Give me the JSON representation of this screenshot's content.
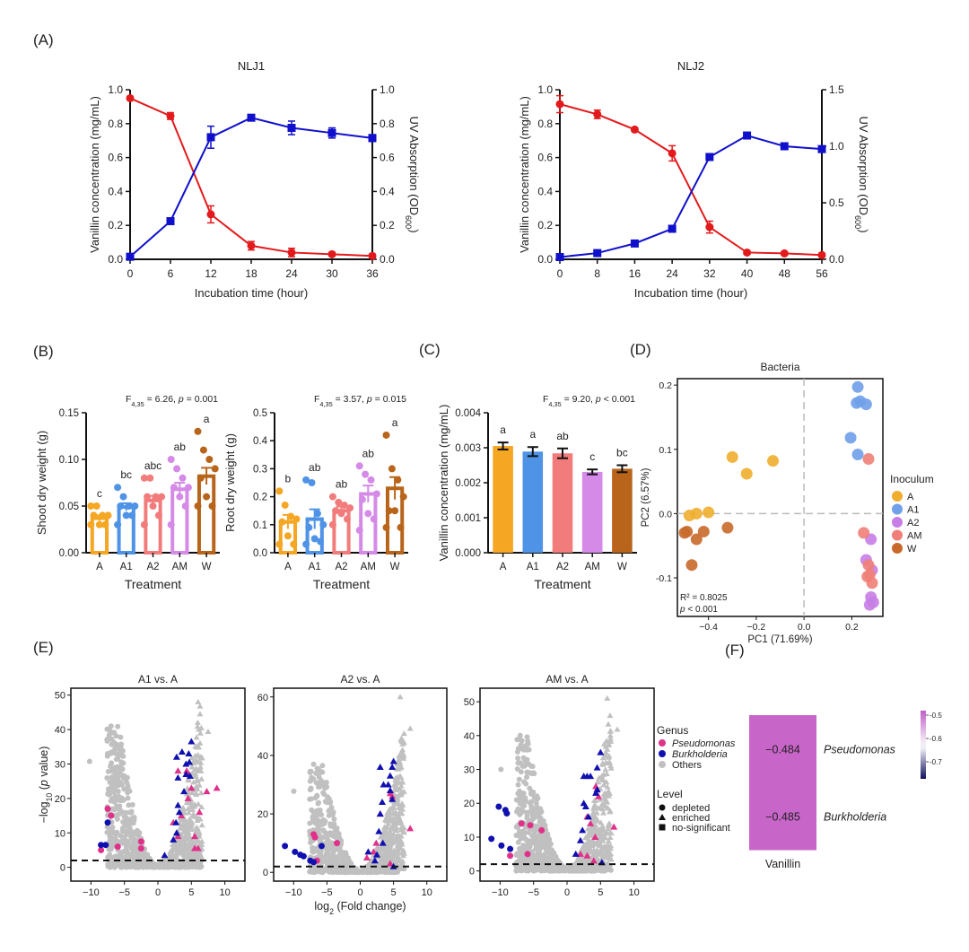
{
  "panel_labels": {
    "A": "(A)",
    "B": "(B)",
    "C": "(C)",
    "D": "(D)",
    "E": "(E)",
    "F": "(F)"
  },
  "colors": {
    "vanillin_line": "#e31a1c",
    "od_line": "#1010cc",
    "A": "#f5a623",
    "A1": "#4f93e6",
    "A2": "#f27c7c",
    "AM": "#d58ae8",
    "W": "#b8651b",
    "pca_A": "#f0ad2e",
    "pca_A1": "#6fa0ea",
    "pca_A2": "#c77ee6",
    "pca_AM": "#ef7f78",
    "pca_W": "#c8692a",
    "pseudomonas": "#e0308a",
    "burkholderia": "#1010b0",
    "others": "#c0c0c0",
    "heat_cell": "#c865c8"
  },
  "chart_data": [
    {
      "id": "A1",
      "type": "line",
      "title": "NLJ1",
      "xlabel": "Incubation time (hour)",
      "ylabel": "Vanillin concentration (mg/mL)",
      "y2label": "UV Absorption (OD",
      "y2label_sub": "600",
      "x": [
        0,
        6,
        12,
        18,
        24,
        30,
        36
      ],
      "xticks": [
        "0",
        "6",
        "12",
        "18",
        "24",
        "30",
        "36"
      ],
      "ylim": [
        0,
        1.0
      ],
      "yticks": [
        "0.0",
        "0.2",
        "0.4",
        "0.6",
        "0.8",
        "1.0"
      ],
      "y2lim": [
        0,
        1.0
      ],
      "y2ticks": [
        "0.0",
        "0.2",
        "0.4",
        "0.6",
        "0.8",
        "1.0"
      ],
      "series": [
        {
          "name": "Vanillin concentration",
          "axis": "left",
          "marker": "circle",
          "values": [
            0.95,
            0.845,
            0.265,
            0.08,
            0.04,
            0.03,
            0.02
          ],
          "errors": [
            0.01,
            0.02,
            0.05,
            0.025,
            0.025,
            0.01,
            0.01
          ]
        },
        {
          "name": "OD600",
          "axis": "right",
          "marker": "square",
          "values": [
            0.015,
            0.225,
            0.72,
            0.835,
            0.775,
            0.745,
            0.715
          ],
          "errors": [
            0.005,
            0.01,
            0.065,
            0.015,
            0.04,
            0.03,
            0.02
          ]
        }
      ]
    },
    {
      "id": "A2",
      "type": "line",
      "title": "NLJ2",
      "xlabel": "Incubation time (hour)",
      "ylabel": "Vanillin concentration (mg/mL)",
      "y2label": "UV Absorption (OD",
      "y2label_sub": "600",
      "x": [
        0,
        8,
        16,
        24,
        32,
        40,
        48,
        56
      ],
      "xticks": [
        "0",
        "8",
        "16",
        "24",
        "32",
        "40",
        "48",
        "56"
      ],
      "ylim": [
        0,
        1.0
      ],
      "yticks": [
        "0.0",
        "0.2",
        "0.4",
        "0.6",
        "0.8",
        "1.0"
      ],
      "y2lim": [
        0,
        1.5
      ],
      "y2ticks": [
        "0.0",
        "0.5",
        "1.0",
        "1.5"
      ],
      "series": [
        {
          "name": "Vanillin concentration",
          "axis": "left",
          "marker": "circle",
          "values": [
            0.915,
            0.855,
            0.765,
            0.625,
            0.19,
            0.04,
            0.035,
            0.025
          ],
          "errors": [
            0.05,
            0.025,
            0.01,
            0.045,
            0.035,
            0.01,
            0.01,
            0.01
          ]
        },
        {
          "name": "OD600",
          "axis": "right",
          "marker": "square",
          "values": [
            0.02,
            0.055,
            0.14,
            0.27,
            0.905,
            1.095,
            1.0,
            0.975
          ],
          "errors": [
            0.005,
            0.01,
            0.01,
            0.01,
            0.015,
            0.015,
            0.015,
            0.02
          ]
        }
      ]
    },
    {
      "id": "B1",
      "type": "bar",
      "title": "",
      "stat": {
        "F": "F",
        "sub": "4,35",
        "rest": " = 6.26, ",
        "p": "p",
        "tail": " = 0.001"
      },
      "xlabel": "Treatment",
      "ylabel": "Shoot dry weight (g)",
      "categories": [
        "A",
        "A1",
        "A2",
        "AM",
        "W"
      ],
      "values": [
        0.037,
        0.049,
        0.056,
        0.068,
        0.082
      ],
      "errors": [
        0.003,
        0.004,
        0.005,
        0.007,
        0.009
      ],
      "letters": [
        "c",
        "bc",
        "abc",
        "ab",
        "a"
      ],
      "points": [
        [
          0.05,
          0.05,
          0.04,
          0.04,
          0.04,
          0.03,
          0.03,
          0.03
        ],
        [
          0.07,
          0.06,
          0.05,
          0.05,
          0.05,
          0.04,
          0.04,
          0.03
        ],
        [
          0.08,
          0.08,
          0.06,
          0.06,
          0.06,
          0.05,
          0.04,
          0.03
        ],
        [
          0.1,
          0.09,
          0.08,
          0.07,
          0.07,
          0.06,
          0.05,
          0.03
        ],
        [
          0.13,
          0.11,
          0.1,
          0.09,
          0.08,
          0.06,
          0.05,
          0.05
        ]
      ],
      "ylim": [
        0,
        0.15
      ],
      "yticks": [
        "0.00",
        "0.05",
        "0.10",
        "0.15"
      ],
      "style": "hollow"
    },
    {
      "id": "B2",
      "type": "bar",
      "title": "",
      "stat": {
        "F": "F",
        "sub": "4,35",
        "rest": " = 3.57, ",
        "p": "p",
        "tail": " = 0.015"
      },
      "xlabel": "Treatment",
      "ylabel": "Root dry weight (g)",
      "categories": [
        "A",
        "A1",
        "A2",
        "AM",
        "W"
      ],
      "values": [
        0.11,
        0.12,
        0.15,
        0.21,
        0.23
      ],
      "errors": [
        0.025,
        0.035,
        0.015,
        0.03,
        0.04
      ],
      "letters": [
        "b",
        "ab",
        "ab",
        "ab",
        "a"
      ],
      "points": [
        [
          0.22,
          0.17,
          0.13,
          0.12,
          0.11,
          0.06,
          0.03,
          0.03
        ],
        [
          0.26,
          0.25,
          0.14,
          0.1,
          0.09,
          0.05,
          0.04,
          0.03
        ],
        [
          0.2,
          0.18,
          0.17,
          0.16,
          0.15,
          0.14,
          0.12,
          0.1
        ],
        [
          0.31,
          0.28,
          0.26,
          0.21,
          0.19,
          0.14,
          0.12,
          0.08
        ],
        [
          0.42,
          0.3,
          0.26,
          0.2,
          0.15,
          0.15,
          0.09,
          0.09
        ]
      ],
      "ylim": [
        0,
        0.5
      ],
      "yticks": [
        "0.0",
        "0.1",
        "0.2",
        "0.3",
        "0.4",
        "0.5"
      ],
      "style": "hollow"
    },
    {
      "id": "C",
      "type": "bar",
      "title": "",
      "stat": {
        "F": "F",
        "sub": "4,35",
        "rest": " = 9.20, ",
        "p": "p",
        "tail": " < 0.001"
      },
      "xlabel": "Treatment",
      "ylabel": "Vanillin concentration (mg/mL)",
      "categories": [
        "A",
        "A1",
        "A2",
        "AM",
        "W"
      ],
      "values": [
        0.00305,
        0.00289,
        0.00284,
        0.00231,
        0.0024
      ],
      "errors": [
        0.0001,
        0.00013,
        0.00014,
        7e-05,
        0.0001
      ],
      "letters": [
        "a",
        "a",
        "ab",
        "c",
        "bc"
      ],
      "ylim": [
        0,
        0.004
      ],
      "yticks": [
        "0.000",
        "0.001",
        "0.002",
        "0.003",
        "0.004"
      ],
      "style": "filled"
    },
    {
      "id": "D",
      "type": "scatter",
      "title": "Bacteria",
      "xlabel": "PC1 (71.69%)",
      "ylabel": "PC2 (6.57%)",
      "xlim": [
        -0.53,
        0.33
      ],
      "ylim": [
        -0.16,
        0.21
      ],
      "xticks": [
        -0.4,
        -0.2,
        0.0,
        0.2
      ],
      "xtick_labels": [
        "−0.4",
        "−0.2",
        "0.0",
        "0.2"
      ],
      "yticks": [
        -0.1,
        0.0,
        0.1,
        0.2
      ],
      "ytick_labels": [
        "-0.1",
        "0.0",
        "0.1",
        "0.2"
      ],
      "annotation_r2": "R² = 0.8025",
      "annotation_p_label": "p",
      "annotation_p_rest": " < 0.001",
      "legend_title": "Inoculum",
      "legend_position": "right",
      "series": [
        {
          "name": "A",
          "points": [
            [
              -0.3,
              0.088
            ],
            [
              -0.24,
              0.062
            ],
            [
              -0.13,
              0.082
            ],
            [
              -0.4,
              0.002
            ],
            [
              -0.45,
              0.0
            ],
            [
              -0.48,
              -0.003
            ]
          ]
        },
        {
          "name": "A1",
          "points": [
            [
              0.225,
              0.197
            ],
            [
              0.22,
              0.172
            ],
            [
              0.235,
              0.175
            ],
            [
              0.26,
              0.17
            ],
            [
              0.195,
              0.118
            ],
            [
              0.225,
              0.092
            ]
          ]
        },
        {
          "name": "A2",
          "points": [
            [
              0.28,
              -0.04
            ],
            [
              0.26,
              -0.072
            ],
            [
              0.285,
              -0.088
            ],
            [
              0.28,
              -0.13
            ],
            [
              0.29,
              -0.138
            ],
            [
              0.275,
              -0.142
            ]
          ]
        },
        {
          "name": "AM",
          "points": [
            [
              0.27,
              0.085
            ],
            [
              0.25,
              -0.03
            ],
            [
              0.27,
              -0.08
            ],
            [
              0.275,
              -0.095
            ],
            [
              0.265,
              -0.098
            ],
            [
              0.285,
              -0.108
            ]
          ]
        },
        {
          "name": "W",
          "points": [
            [
              -0.49,
              -0.028
            ],
            [
              -0.5,
              -0.03
            ],
            [
              -0.42,
              -0.028
            ],
            [
              -0.45,
              -0.04
            ],
            [
              -0.32,
              -0.022
            ],
            [
              -0.47,
              -0.08
            ]
          ]
        }
      ]
    },
    {
      "id": "E1",
      "type": "scatter",
      "title": "A1 vs. A",
      "xlim": [
        -13,
        13
      ],
      "ylim": [
        -4,
        52
      ],
      "xticks": [
        -10,
        -5,
        0,
        5,
        10
      ],
      "xtick_labels": [
        "−10",
        "−5",
        "0",
        "5",
        "10"
      ],
      "yticks": [
        0,
        10,
        20,
        30,
        40,
        50
      ],
      "ytick_labels": [
        "0",
        "10",
        "20",
        "30",
        "40",
        "50"
      ],
      "threshold": 2,
      "seed": 11,
      "left_peak": 41,
      "right_peak": 48,
      "pseudomonas_points": [
        [
          -7.5,
          17
        ],
        [
          -7,
          15
        ],
        [
          -8.5,
          5
        ],
        [
          -6,
          6
        ],
        [
          -2.5,
          7.5
        ],
        [
          -2.5,
          5.5
        ],
        [
          3,
          28
        ],
        [
          4.3,
          28
        ],
        [
          4.6,
          27
        ],
        [
          5,
          23
        ],
        [
          4.5,
          20
        ],
        [
          3.5,
          15
        ],
        [
          7.3,
          22
        ],
        [
          8.8,
          23
        ],
        [
          6.2,
          16
        ],
        [
          5.5,
          9
        ],
        [
          5.5,
          5.5
        ],
        [
          6,
          5.5
        ],
        [
          2.3,
          13
        ],
        [
          3,
          9
        ]
      ],
      "burkholderia_points": [
        [
          -8.5,
          6.5
        ],
        [
          -7.8,
          6.5
        ],
        [
          -7.5,
          13
        ],
        [
          5,
          36.5
        ],
        [
          3.6,
          33.5
        ],
        [
          2.8,
          32
        ],
        [
          4.6,
          33
        ],
        [
          4.2,
          30
        ],
        [
          4.7,
          30.5
        ],
        [
          3,
          26
        ],
        [
          4.8,
          26.5
        ],
        [
          3.9,
          22
        ],
        [
          3,
          18
        ],
        [
          3.2,
          16
        ],
        [
          2.7,
          13
        ],
        [
          2.8,
          10
        ],
        [
          2.3,
          8
        ],
        [
          1,
          3.5
        ],
        [
          4.2,
          27
        ]
      ]
    },
    {
      "id": "E2",
      "type": "scatter",
      "title": "A2 vs. A",
      "xlabel": "log",
      "xlabel_sub": "2",
      "xlabel_rest": " (Fold change)",
      "xlim": [
        -13,
        13
      ],
      "ylim": [
        -3,
        63
      ],
      "xticks": [
        -10,
        -5,
        0,
        5,
        10
      ],
      "xtick_labels": [
        "−10",
        "−5",
        "0",
        "5",
        "10"
      ],
      "yticks": [
        0,
        20,
        40,
        60
      ],
      "ytick_labels": [
        "0",
        "20",
        "40",
        "60"
      ],
      "threshold": 2,
      "seed": 23,
      "left_peak": 37,
      "right_peak": 60,
      "pseudomonas_points": [
        [
          -7,
          13
        ],
        [
          -6.8,
          12
        ],
        [
          -3.5,
          10
        ],
        [
          -6.5,
          4
        ],
        [
          1,
          5
        ],
        [
          2,
          7
        ],
        [
          3,
          20
        ],
        [
          4.5,
          27
        ],
        [
          4.8,
          26
        ],
        [
          2.4,
          10
        ],
        [
          4.5,
          3
        ],
        [
          7.5,
          15
        ]
      ],
      "burkholderia_points": [
        [
          -11.3,
          9
        ],
        [
          -9.8,
          7
        ],
        [
          -9,
          6
        ],
        [
          -8.5,
          5.5
        ],
        [
          -7.5,
          4
        ],
        [
          -7,
          3.5
        ],
        [
          -5.8,
          9
        ],
        [
          3,
          36
        ],
        [
          5,
          38
        ],
        [
          4.8,
          36
        ],
        [
          4.5,
          33
        ],
        [
          4.2,
          30
        ],
        [
          3.5,
          30
        ],
        [
          4.5,
          28
        ],
        [
          3.3,
          24
        ],
        [
          4.8,
          25
        ],
        [
          3,
          20
        ],
        [
          2.8,
          14
        ],
        [
          3.4,
          10
        ],
        [
          1.2,
          7
        ],
        [
          2.5,
          6
        ],
        [
          2.2,
          4
        ],
        [
          5,
          2
        ]
      ]
    },
    {
      "id": "E3",
      "type": "scatter",
      "title": "AM vs. A",
      "xlim": [
        -13,
        13
      ],
      "ylim": [
        -3,
        54
      ],
      "xticks": [
        -10,
        -5,
        0,
        5,
        10
      ],
      "xtick_labels": [
        "−10",
        "−5",
        "0",
        "5",
        "10"
      ],
      "yticks": [
        0,
        10,
        20,
        30,
        40,
        50
      ],
      "ytick_labels": [
        "0",
        "10",
        "20",
        "30",
        "40",
        "50"
      ],
      "threshold": 2,
      "seed": 37,
      "left_peak": 40,
      "right_peak": 51,
      "pseudomonas_points": [
        [
          -6.8,
          14
        ],
        [
          -5.5,
          13.5
        ],
        [
          -3.8,
          12
        ],
        [
          -8.5,
          4.5
        ],
        [
          -5.9,
          5
        ],
        [
          4.3,
          25
        ],
        [
          4.5,
          24
        ],
        [
          4.7,
          22
        ],
        [
          3,
          16
        ],
        [
          3.5,
          14
        ],
        [
          2,
          5
        ],
        [
          3,
          4.5
        ],
        [
          4,
          3
        ],
        [
          4.2,
          10
        ],
        [
          7,
          13
        ]
      ],
      "burkholderia_points": [
        [
          -10.2,
          19
        ],
        [
          -9.2,
          18
        ],
        [
          -9,
          17
        ],
        [
          -11.3,
          9.5
        ],
        [
          -9.8,
          7.5
        ],
        [
          -8.5,
          6.5
        ],
        [
          5,
          35
        ],
        [
          4.5,
          30.5
        ],
        [
          2.5,
          28
        ],
        [
          3,
          28
        ],
        [
          3.5,
          28
        ],
        [
          4.5,
          24
        ],
        [
          4.3,
          23
        ],
        [
          2.5,
          20
        ],
        [
          2.8,
          19
        ],
        [
          3.2,
          16
        ],
        [
          2.3,
          12
        ],
        [
          2,
          9
        ],
        [
          1.3,
          5
        ],
        [
          5.2,
          2.5
        ]
      ]
    },
    {
      "id": "F",
      "type": "heatmap",
      "rows": [
        "Pseudomonas",
        "Burkholderia"
      ],
      "columns": [
        "Vanillin"
      ],
      "values": [
        [
          -0.484
        ],
        [
          -0.485
        ]
      ],
      "value_labels": [
        "−0.484",
        "−0.485"
      ],
      "colorbar": {
        "ticks": [
          "-0.5",
          "-0.6",
          "-0.7"
        ],
        "range": [
          -0.48,
          -0.76
        ]
      }
    }
  ],
  "e_legend": {
    "genus_title": "Genus",
    "genus_items": [
      "Pseudomonas",
      "Burkholderia",
      "Others"
    ],
    "level_title": "Level",
    "level_items": [
      "depleted",
      "enriched",
      "no-significant"
    ]
  },
  "e_ylabel_pre": "−log",
  "e_ylabel_sub": "10",
  "e_ylabel_mid": " (",
  "e_ylabel_p": "p",
  "e_ylabel_post": " value)"
}
